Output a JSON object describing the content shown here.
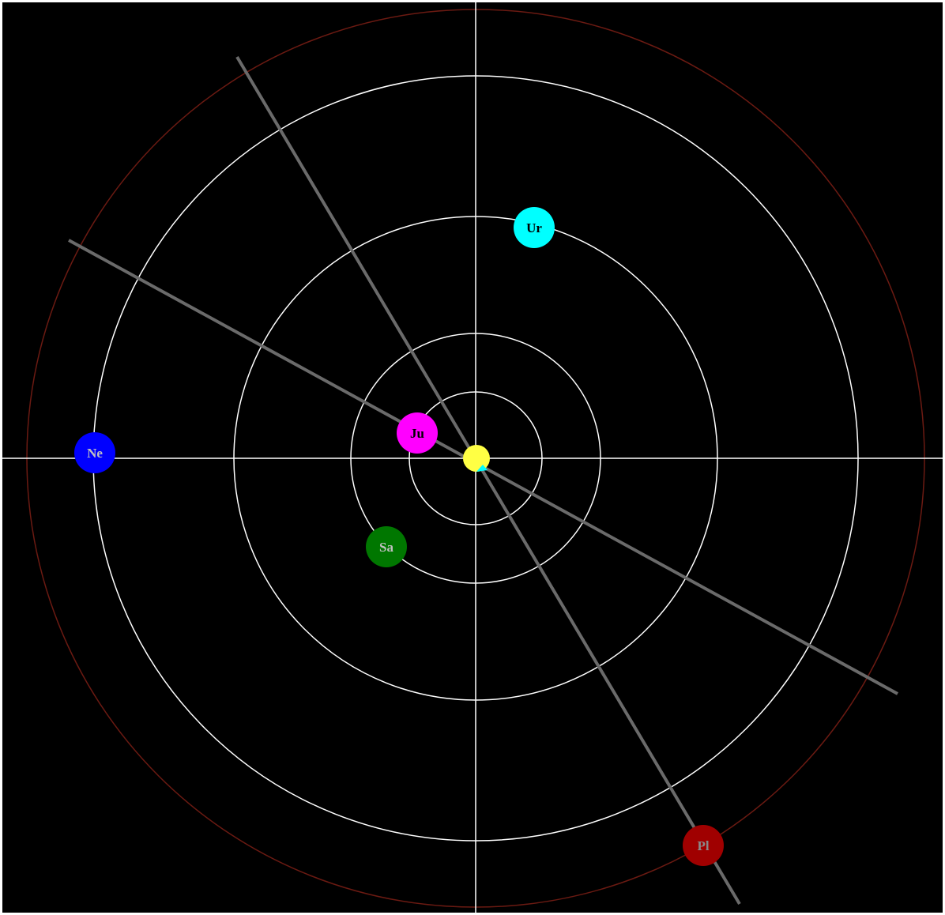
{
  "colors": {
    "background": "#000000",
    "frame": "#ffffff",
    "orbit": "#ffffff",
    "axis": "#ffffff",
    "outer_orbit": "#6b1a12",
    "alignment_line": "#6a6a6a"
  },
  "planets": [
    {
      "id": "sun",
      "label": "",
      "color": "#ffff44",
      "label_color": "#000000"
    },
    {
      "id": "uranus",
      "label": "Ur",
      "color": "#00ffff",
      "label_color": "#000000"
    },
    {
      "id": "jupiter",
      "label": "Ju",
      "color": "#ff00ff",
      "label_color": "#000000"
    },
    {
      "id": "neptune",
      "label": "Ne",
      "color": "#0000ff",
      "label_color": "#c0c0c0"
    },
    {
      "id": "saturn",
      "label": "Sa",
      "color": "#007700",
      "label_color": "#c0c0c0"
    },
    {
      "id": "pluto",
      "label": "Pl",
      "color": "#a00000",
      "label_color": "#8a8a8a"
    }
  ]
}
